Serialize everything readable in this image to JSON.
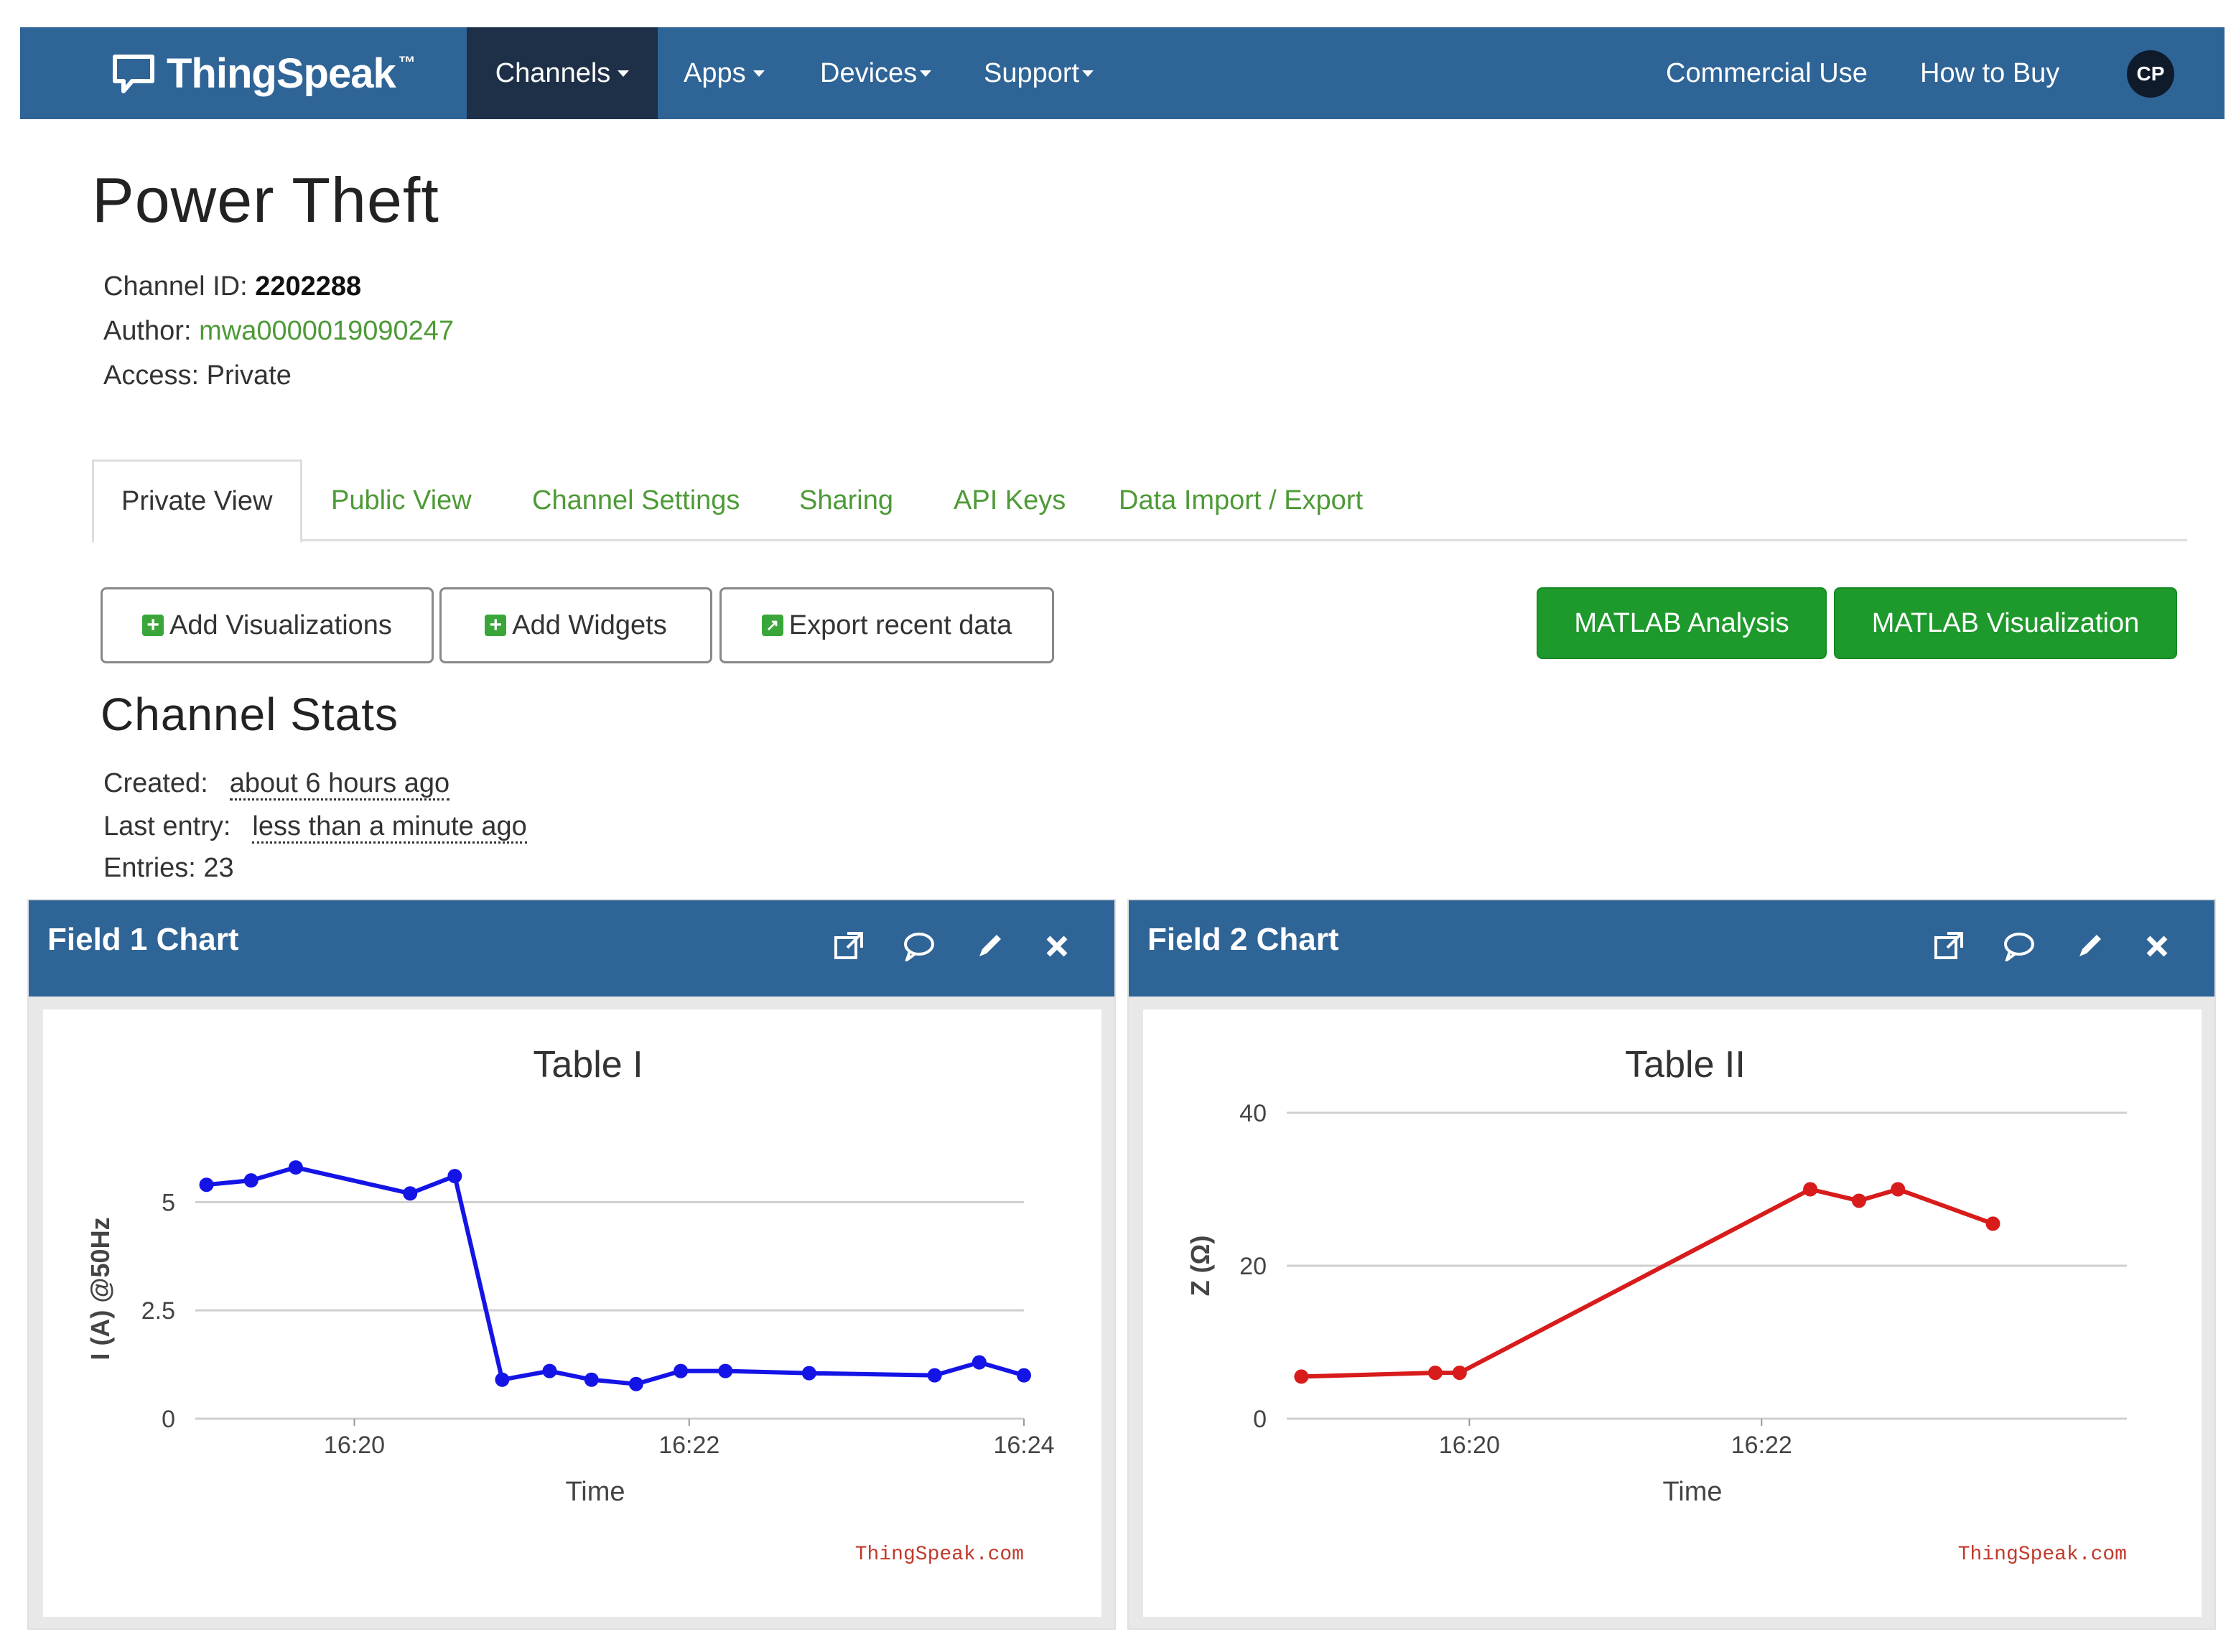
{
  "navbar": {
    "brand": "ThingSpeak",
    "brand_tm": "™",
    "items": [
      {
        "label": "Channels",
        "active": true,
        "dropdown": true
      },
      {
        "label": "Apps",
        "active": false,
        "dropdown": true
      },
      {
        "label": "Devices",
        "active": false,
        "dropdown": true
      },
      {
        "label": "Support",
        "active": false,
        "dropdown": true
      }
    ],
    "right_links": [
      "Commercial Use",
      "How to Buy"
    ],
    "avatar": "CP"
  },
  "channel": {
    "title": "Power Theft",
    "id_label": "Channel ID:",
    "id_value": "2202288",
    "author_label": "Author:",
    "author_value": "mwa0000019090247",
    "access_label": "Access:",
    "access_value": "Private"
  },
  "tabs": [
    "Private View",
    "Public View",
    "Channel Settings",
    "Sharing",
    "API Keys",
    "Data Import / Export"
  ],
  "buttons": {
    "add_visualizations": "Add Visualizations",
    "add_widgets": "Add Widgets",
    "export_recent": "Export recent data",
    "matlab_analysis": "MATLAB Analysis",
    "matlab_visualization": "MATLAB Visualization"
  },
  "stats": {
    "title": "Channel Stats",
    "created_label": "Created:",
    "created_value": "about 6 hours ago",
    "last_entry_label": "Last entry:",
    "last_entry_value": "less than a minute ago",
    "entries_label": "Entries:",
    "entries_value": "23"
  },
  "widgets": [
    {
      "title": "Field 1 Chart"
    },
    {
      "title": "Field 2 Chart"
    }
  ],
  "colors": {
    "nav": "#2f6496",
    "nav_active": "#1e3048",
    "link_green": "#4e9a37",
    "button_green": "#1e9a2c",
    "series1": "#1414e6",
    "series2": "#d81b1b"
  },
  "chart_data": [
    {
      "type": "line",
      "title": "Table I",
      "xlabel": "Time",
      "ylabel": "I (A) @50Hz",
      "xlim": [
        "16:19:03",
        "16:24:00"
      ],
      "ylim": [
        0,
        6
      ],
      "x_ticks": [
        "16:20",
        "16:22",
        "16:24"
      ],
      "y_ticks": [
        "0",
        "2.5",
        "5"
      ],
      "credit": "ThingSpeak.com",
      "series": [
        {
          "x": [
            "16:19:07",
            "16:19:23",
            "16:19:39",
            "16:20:20",
            "16:20:36",
            "16:20:53",
            "16:21:10",
            "16:21:25",
            "16:21:41",
            "16:21:57",
            "16:22:13",
            "16:22:43",
            "16:23:28",
            "16:23:44",
            "16:24:00"
          ],
          "y": [
            5.4,
            5.5,
            5.8,
            5.2,
            5.6,
            0.9,
            1.1,
            0.9,
            0.8,
            1.1,
            1.1,
            1.05,
            1.0,
            1.3,
            1.0
          ]
        }
      ]
    },
    {
      "type": "line",
      "title": "Table II",
      "xlabel": "Time",
      "ylabel": "Z (Ω)",
      "xlim": [
        "16:18:45",
        "16:24:30"
      ],
      "ylim": [
        0,
        40
      ],
      "x_ticks": [
        "16:20",
        "16:22"
      ],
      "y_ticks": [
        "0",
        "20",
        "40"
      ],
      "credit": "ThingSpeak.com",
      "series": [
        {
          "x": [
            "16:18:51",
            "16:19:46",
            "16:19:56",
            "16:22:20",
            "16:22:40",
            "16:22:56",
            "16:23:35"
          ],
          "y": [
            5.5,
            6.0,
            6.0,
            30,
            28.5,
            30,
            25.5
          ]
        }
      ]
    }
  ]
}
